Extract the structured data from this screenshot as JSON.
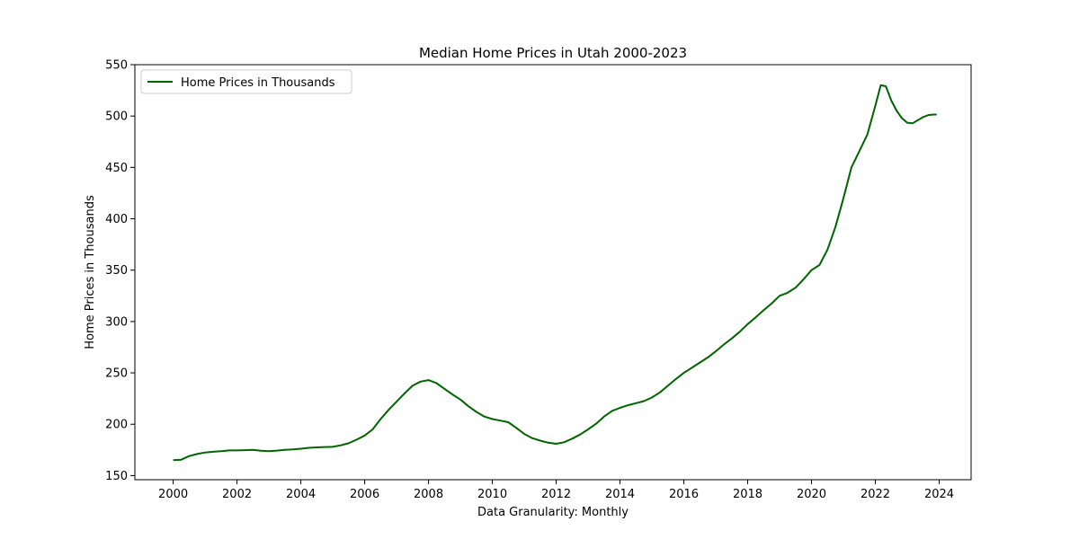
{
  "chart_data": {
    "type": "line",
    "title": "Median Home Prices in Utah 2000-2023",
    "xlabel": "Data Granularity: Monthly",
    "ylabel": "Home Prices in Thousands",
    "xlim": [
      1998.8,
      2025.0
    ],
    "ylim": [
      146,
      550
    ],
    "x_ticks": [
      2000,
      2002,
      2004,
      2006,
      2008,
      2010,
      2012,
      2014,
      2016,
      2018,
      2020,
      2022,
      2024
    ],
    "y_ticks": [
      150,
      200,
      250,
      300,
      350,
      400,
      450,
      500,
      550
    ],
    "legend": {
      "placement": "upper-left",
      "entries": [
        "Home Prices in Thousands"
      ]
    },
    "grid": false,
    "colors": {
      "line": "#006400"
    },
    "series": [
      {
        "name": "Home Prices in Thousands",
        "x": [
          2000.0,
          2000.25,
          2000.5,
          2000.75,
          2001.0,
          2001.25,
          2001.5,
          2001.75,
          2002.0,
          2002.25,
          2002.5,
          2002.75,
          2003.0,
          2003.25,
          2003.5,
          2003.75,
          2004.0,
          2004.25,
          2004.5,
          2004.75,
          2005.0,
          2005.25,
          2005.5,
          2005.75,
          2006.0,
          2006.25,
          2006.5,
          2006.75,
          2007.0,
          2007.25,
          2007.5,
          2007.75,
          2008.0,
          2008.25,
          2008.5,
          2008.75,
          2009.0,
          2009.25,
          2009.5,
          2009.75,
          2010.0,
          2010.25,
          2010.5,
          2010.75,
          2011.0,
          2011.25,
          2011.5,
          2011.75,
          2012.0,
          2012.25,
          2012.5,
          2012.75,
          2013.0,
          2013.25,
          2013.5,
          2013.75,
          2014.0,
          2014.25,
          2014.5,
          2014.75,
          2015.0,
          2015.25,
          2015.5,
          2015.75,
          2016.0,
          2016.25,
          2016.5,
          2016.75,
          2017.0,
          2017.25,
          2017.5,
          2017.75,
          2018.0,
          2018.25,
          2018.5,
          2018.75,
          2019.0,
          2019.25,
          2019.5,
          2019.75,
          2020.0,
          2020.25,
          2020.5,
          2020.75,
          2021.0,
          2021.25,
          2021.5,
          2021.75,
          2022.0,
          2022.17,
          2022.33,
          2022.5,
          2022.67,
          2022.83,
          2023.0,
          2023.17,
          2023.33,
          2023.5,
          2023.67,
          2023.83,
          2023.92
        ],
        "values": [
          165,
          165.5,
          169,
          171,
          172.5,
          173.2,
          173.7,
          174.5,
          174.5,
          174.8,
          175,
          174.2,
          173.8,
          174.3,
          175,
          175.5,
          176.2,
          177,
          177.5,
          177.8,
          178,
          179.5,
          181.5,
          185,
          189,
          195,
          205,
          214,
          222,
          230,
          237.5,
          241.5,
          243,
          240,
          234.5,
          229,
          224,
          217.5,
          212,
          207.5,
          205,
          203.5,
          202,
          196.5,
          190.5,
          186.5,
          184,
          182,
          181,
          182.5,
          186,
          190,
          195,
          200.5,
          207.5,
          213,
          216,
          218.5,
          220.5,
          222.5,
          226,
          231,
          237.5,
          244,
          250,
          255,
          260,
          265,
          271,
          277.5,
          283.5,
          290,
          297.5,
          304,
          311,
          317.5,
          325,
          328,
          333,
          341,
          350,
          355,
          370,
          392,
          420,
          450,
          466,
          482,
          510,
          530,
          529,
          515,
          505,
          498,
          493.5,
          493,
          496,
          499,
          501,
          501.5,
          501.5
        ]
      }
    ]
  }
}
